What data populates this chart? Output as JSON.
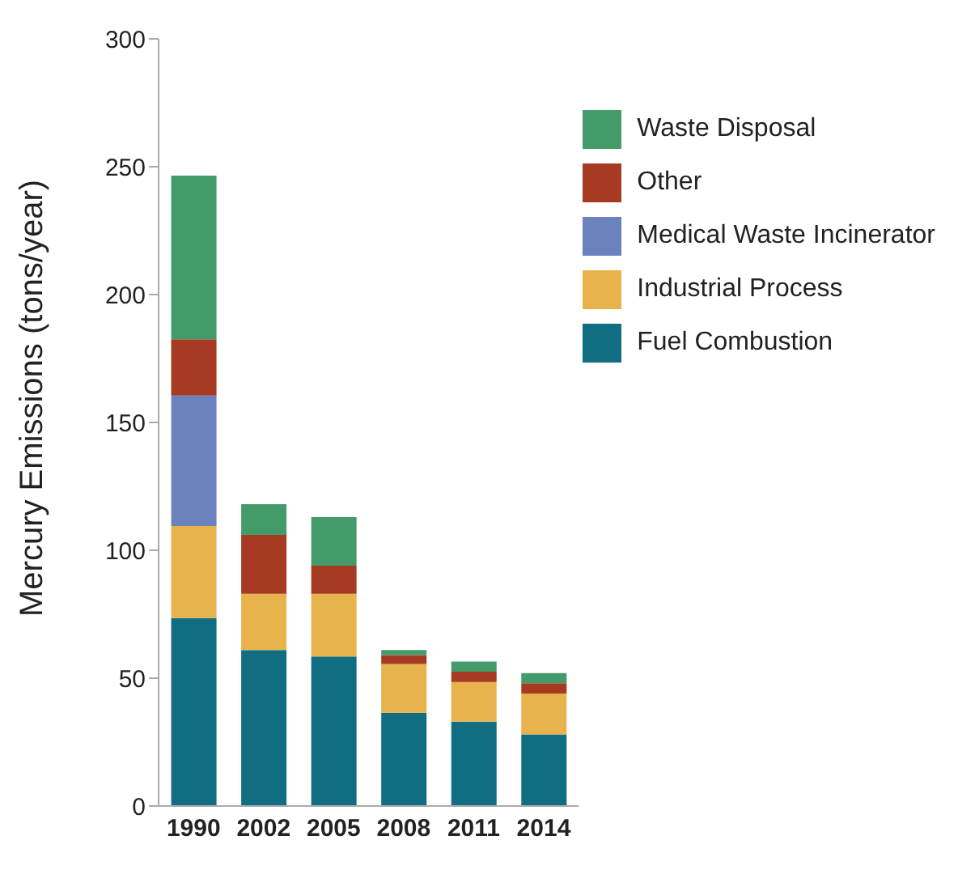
{
  "chart_data": {
    "type": "bar",
    "ylabel": "Mercury Emissions (tons/year)",
    "categories": [
      "1990",
      "2002",
      "2005",
      "2008",
      "2011",
      "2014"
    ],
    "stacked": true,
    "series": [
      {
        "name": "Fuel Combustion",
        "color": "#116e82",
        "values": [
          73.5,
          61,
          58.5,
          36.5,
          33,
          28
        ]
      },
      {
        "name": "Industrial Process",
        "color": "#e8b34c",
        "values": [
          36,
          22,
          24.5,
          19,
          15.5,
          16
        ]
      },
      {
        "name": "Medical Waste Incinerator",
        "color": "#6b82bc",
        "values": [
          51,
          0,
          0,
          0,
          0,
          0
        ]
      },
      {
        "name": "Other",
        "color": "#a63a22",
        "values": [
          22,
          23,
          11,
          3.5,
          4,
          4
        ]
      },
      {
        "name": "Waste Disposal",
        "color": "#429b68",
        "values": [
          64,
          12,
          19,
          2,
          4,
          4
        ]
      }
    ],
    "ylim": [
      0,
      300
    ],
    "yticks": [
      0,
      50,
      100,
      150,
      200,
      250,
      300
    ],
    "grid": false,
    "legend": "top right"
  }
}
